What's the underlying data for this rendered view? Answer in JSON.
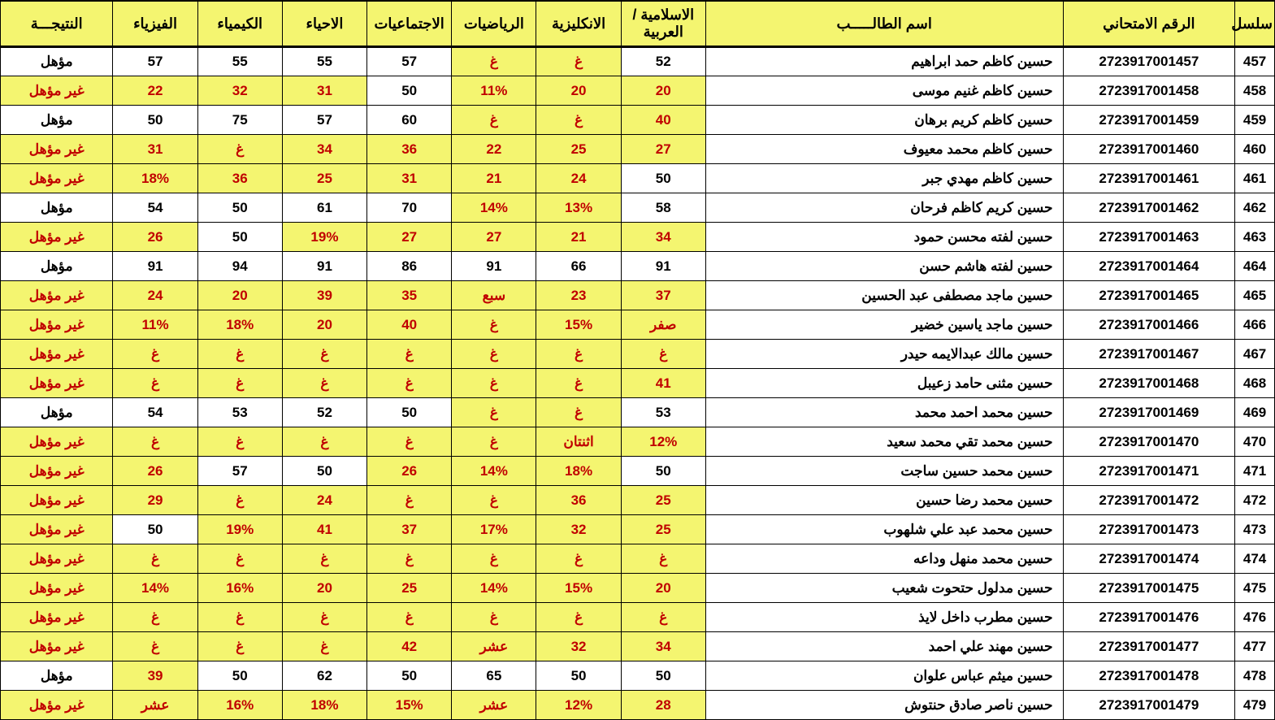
{
  "headers": {
    "seq": "سلسل",
    "exam_no": "الرقم الامتحاني",
    "name": "اسم الطالـــــب",
    "islamic_arabic": "الاسلامية / العربية",
    "english": "الانكليزية",
    "math": "الرياضيات",
    "social": "الاجتماعيات",
    "biology": "الاحياء",
    "chemistry": "الكيمياء",
    "physics": "الفيزياء",
    "result": "النتيجـــة"
  },
  "rows": [
    {
      "seq": "457",
      "exam_no": "2723917001457",
      "name": "حسين كاظم حمد ابراهيم",
      "c": [
        {
          "v": "52",
          "f": 0
        },
        {
          "v": "غ",
          "f": 1
        },
        {
          "v": "غ",
          "f": 1
        },
        {
          "v": "57",
          "f": 0
        },
        {
          "v": "55",
          "f": 0
        },
        {
          "v": "55",
          "f": 0
        },
        {
          "v": "57",
          "f": 0
        }
      ],
      "result": {
        "v": "مؤهل",
        "f": 0
      }
    },
    {
      "seq": "458",
      "exam_no": "2723917001458",
      "name": "حسين كاظم غنيم موسى",
      "c": [
        {
          "v": "20",
          "f": 1
        },
        {
          "v": "20",
          "f": 1
        },
        {
          "v": "11%",
          "f": 1
        },
        {
          "v": "50",
          "f": 0
        },
        {
          "v": "31",
          "f": 1
        },
        {
          "v": "32",
          "f": 1
        },
        {
          "v": "22",
          "f": 1
        }
      ],
      "result": {
        "v": "غير مؤهل",
        "f": 1
      }
    },
    {
      "seq": "459",
      "exam_no": "2723917001459",
      "name": "حسين كاظم كريم برهان",
      "c": [
        {
          "v": "40",
          "f": 1
        },
        {
          "v": "غ",
          "f": 1
        },
        {
          "v": "غ",
          "f": 1
        },
        {
          "v": "60",
          "f": 0
        },
        {
          "v": "57",
          "f": 0
        },
        {
          "v": "75",
          "f": 0
        },
        {
          "v": "50",
          "f": 0
        }
      ],
      "result": {
        "v": "مؤهل",
        "f": 0
      }
    },
    {
      "seq": "460",
      "exam_no": "2723917001460",
      "name": "حسين كاظم محمد معيوف",
      "c": [
        {
          "v": "27",
          "f": 1
        },
        {
          "v": "25",
          "f": 1
        },
        {
          "v": "22",
          "f": 1
        },
        {
          "v": "36",
          "f": 1
        },
        {
          "v": "34",
          "f": 1
        },
        {
          "v": "غ",
          "f": 1
        },
        {
          "v": "31",
          "f": 1
        }
      ],
      "result": {
        "v": "غير مؤهل",
        "f": 1
      }
    },
    {
      "seq": "461",
      "exam_no": "2723917001461",
      "name": "حسين كاظم مهدي جبر",
      "c": [
        {
          "v": "50",
          "f": 0
        },
        {
          "v": "24",
          "f": 1
        },
        {
          "v": "21",
          "f": 1
        },
        {
          "v": "31",
          "f": 1
        },
        {
          "v": "25",
          "f": 1
        },
        {
          "v": "36",
          "f": 1
        },
        {
          "v": "18%",
          "f": 1
        }
      ],
      "result": {
        "v": "غير مؤهل",
        "f": 1
      }
    },
    {
      "seq": "462",
      "exam_no": "2723917001462",
      "name": "حسين كريم كاظم فرحان",
      "c": [
        {
          "v": "58",
          "f": 0
        },
        {
          "v": "13%",
          "f": 1
        },
        {
          "v": "14%",
          "f": 1
        },
        {
          "v": "70",
          "f": 0
        },
        {
          "v": "61",
          "f": 0
        },
        {
          "v": "50",
          "f": 0
        },
        {
          "v": "54",
          "f": 0
        }
      ],
      "result": {
        "v": "مؤهل",
        "f": 0
      }
    },
    {
      "seq": "463",
      "exam_no": "2723917001463",
      "name": "حسين لفته محسن حمود",
      "c": [
        {
          "v": "34",
          "f": 1
        },
        {
          "v": "21",
          "f": 1
        },
        {
          "v": "27",
          "f": 1
        },
        {
          "v": "27",
          "f": 1
        },
        {
          "v": "19%",
          "f": 1
        },
        {
          "v": "50",
          "f": 0
        },
        {
          "v": "26",
          "f": 1
        }
      ],
      "result": {
        "v": "غير مؤهل",
        "f": 1
      }
    },
    {
      "seq": "464",
      "exam_no": "2723917001464",
      "name": "حسين لفته هاشم حسن",
      "c": [
        {
          "v": "91",
          "f": 0
        },
        {
          "v": "66",
          "f": 0
        },
        {
          "v": "91",
          "f": 0
        },
        {
          "v": "86",
          "f": 0
        },
        {
          "v": "91",
          "f": 0
        },
        {
          "v": "94",
          "f": 0
        },
        {
          "v": "91",
          "f": 0
        }
      ],
      "result": {
        "v": "مؤهل",
        "f": 0
      }
    },
    {
      "seq": "465",
      "exam_no": "2723917001465",
      "name": "حسين ماجد مصطفى عبد الحسين",
      "c": [
        {
          "v": "37",
          "f": 1
        },
        {
          "v": "23",
          "f": 1
        },
        {
          "v": "سبع",
          "f": 1
        },
        {
          "v": "35",
          "f": 1
        },
        {
          "v": "39",
          "f": 1
        },
        {
          "v": "20",
          "f": 1
        },
        {
          "v": "24",
          "f": 1
        }
      ],
      "result": {
        "v": "غير مؤهل",
        "f": 1
      }
    },
    {
      "seq": "466",
      "exam_no": "2723917001466",
      "name": "حسين ماجد ياسين خضير",
      "c": [
        {
          "v": "صفر",
          "f": 1
        },
        {
          "v": "15%",
          "f": 1
        },
        {
          "v": "غ",
          "f": 1
        },
        {
          "v": "40",
          "f": 1
        },
        {
          "v": "20",
          "f": 1
        },
        {
          "v": "18%",
          "f": 1
        },
        {
          "v": "11%",
          "f": 1
        }
      ],
      "result": {
        "v": "غير مؤهل",
        "f": 1
      }
    },
    {
      "seq": "467",
      "exam_no": "2723917001467",
      "name": "حسين مالك عبدالايمه حيدر",
      "c": [
        {
          "v": "غ",
          "f": 1
        },
        {
          "v": "غ",
          "f": 1
        },
        {
          "v": "غ",
          "f": 1
        },
        {
          "v": "غ",
          "f": 1
        },
        {
          "v": "غ",
          "f": 1
        },
        {
          "v": "غ",
          "f": 1
        },
        {
          "v": "غ",
          "f": 1
        }
      ],
      "result": {
        "v": "غير مؤهل",
        "f": 1
      }
    },
    {
      "seq": "468",
      "exam_no": "2723917001468",
      "name": "حسين مثنى حامد زعيبل",
      "c": [
        {
          "v": "41",
          "f": 1
        },
        {
          "v": "غ",
          "f": 1
        },
        {
          "v": "غ",
          "f": 1
        },
        {
          "v": "غ",
          "f": 1
        },
        {
          "v": "غ",
          "f": 1
        },
        {
          "v": "غ",
          "f": 1
        },
        {
          "v": "غ",
          "f": 1
        }
      ],
      "result": {
        "v": "غير مؤهل",
        "f": 1
      }
    },
    {
      "seq": "469",
      "exam_no": "2723917001469",
      "name": "حسين محمد احمد محمد",
      "c": [
        {
          "v": "53",
          "f": 0
        },
        {
          "v": "غ",
          "f": 1
        },
        {
          "v": "غ",
          "f": 1
        },
        {
          "v": "50",
          "f": 0
        },
        {
          "v": "52",
          "f": 0
        },
        {
          "v": "53",
          "f": 0
        },
        {
          "v": "54",
          "f": 0
        }
      ],
      "result": {
        "v": "مؤهل",
        "f": 0
      }
    },
    {
      "seq": "470",
      "exam_no": "2723917001470",
      "name": "حسين محمد تقي محمد سعيد",
      "c": [
        {
          "v": "12%",
          "f": 1
        },
        {
          "v": "اثنتان",
          "f": 1
        },
        {
          "v": "غ",
          "f": 1
        },
        {
          "v": "غ",
          "f": 1
        },
        {
          "v": "غ",
          "f": 1
        },
        {
          "v": "غ",
          "f": 1
        },
        {
          "v": "غ",
          "f": 1
        }
      ],
      "result": {
        "v": "غير مؤهل",
        "f": 1
      }
    },
    {
      "seq": "471",
      "exam_no": "2723917001471",
      "name": "حسين محمد حسين ساجت",
      "c": [
        {
          "v": "50",
          "f": 0
        },
        {
          "v": "18%",
          "f": 1
        },
        {
          "v": "14%",
          "f": 1
        },
        {
          "v": "26",
          "f": 1
        },
        {
          "v": "50",
          "f": 0
        },
        {
          "v": "57",
          "f": 0
        },
        {
          "v": "26",
          "f": 1
        }
      ],
      "result": {
        "v": "غير مؤهل",
        "f": 1
      }
    },
    {
      "seq": "472",
      "exam_no": "2723917001472",
      "name": "حسين محمد رضا حسين",
      "c": [
        {
          "v": "25",
          "f": 1
        },
        {
          "v": "36",
          "f": 1
        },
        {
          "v": "غ",
          "f": 1
        },
        {
          "v": "غ",
          "f": 1
        },
        {
          "v": "24",
          "f": 1
        },
        {
          "v": "غ",
          "f": 1
        },
        {
          "v": "29",
          "f": 1
        }
      ],
      "result": {
        "v": "غير مؤهل",
        "f": 1
      }
    },
    {
      "seq": "473",
      "exam_no": "2723917001473",
      "name": "حسين محمد عبد علي شلهوب",
      "c": [
        {
          "v": "25",
          "f": 1
        },
        {
          "v": "32",
          "f": 1
        },
        {
          "v": "17%",
          "f": 1
        },
        {
          "v": "37",
          "f": 1
        },
        {
          "v": "41",
          "f": 1
        },
        {
          "v": "19%",
          "f": 1
        },
        {
          "v": "50",
          "f": 0
        }
      ],
      "result": {
        "v": "غير مؤهل",
        "f": 1
      }
    },
    {
      "seq": "474",
      "exam_no": "2723917001474",
      "name": "حسين محمد منهل وداعه",
      "c": [
        {
          "v": "غ",
          "f": 1
        },
        {
          "v": "غ",
          "f": 1
        },
        {
          "v": "غ",
          "f": 1
        },
        {
          "v": "غ",
          "f": 1
        },
        {
          "v": "غ",
          "f": 1
        },
        {
          "v": "غ",
          "f": 1
        },
        {
          "v": "غ",
          "f": 1
        }
      ],
      "result": {
        "v": "غير مؤهل",
        "f": 1
      }
    },
    {
      "seq": "475",
      "exam_no": "2723917001475",
      "name": "حسين مدلول حتحوت شعيب",
      "c": [
        {
          "v": "20",
          "f": 1
        },
        {
          "v": "15%",
          "f": 1
        },
        {
          "v": "14%",
          "f": 1
        },
        {
          "v": "25",
          "f": 1
        },
        {
          "v": "20",
          "f": 1
        },
        {
          "v": "16%",
          "f": 1
        },
        {
          "v": "14%",
          "f": 1
        }
      ],
      "result": {
        "v": "غير مؤهل",
        "f": 1
      }
    },
    {
      "seq": "476",
      "exam_no": "2723917001476",
      "name": "حسين مطرب داخل لايذ",
      "c": [
        {
          "v": "غ",
          "f": 1
        },
        {
          "v": "غ",
          "f": 1
        },
        {
          "v": "غ",
          "f": 1
        },
        {
          "v": "غ",
          "f": 1
        },
        {
          "v": "غ",
          "f": 1
        },
        {
          "v": "غ",
          "f": 1
        },
        {
          "v": "غ",
          "f": 1
        }
      ],
      "result": {
        "v": "غير مؤهل",
        "f": 1
      }
    },
    {
      "seq": "477",
      "exam_no": "2723917001477",
      "name": "حسين مهند علي احمد",
      "c": [
        {
          "v": "34",
          "f": 1
        },
        {
          "v": "32",
          "f": 1
        },
        {
          "v": "عشر",
          "f": 1
        },
        {
          "v": "42",
          "f": 1
        },
        {
          "v": "غ",
          "f": 1
        },
        {
          "v": "غ",
          "f": 1
        },
        {
          "v": "غ",
          "f": 1
        }
      ],
      "result": {
        "v": "غير مؤهل",
        "f": 1
      }
    },
    {
      "seq": "478",
      "exam_no": "2723917001478",
      "name": "حسين ميثم عباس علوان",
      "c": [
        {
          "v": "50",
          "f": 0
        },
        {
          "v": "50",
          "f": 0
        },
        {
          "v": "65",
          "f": 0
        },
        {
          "v": "50",
          "f": 0
        },
        {
          "v": "62",
          "f": 0
        },
        {
          "v": "50",
          "f": 0
        },
        {
          "v": "39",
          "f": 1
        }
      ],
      "result": {
        "v": "مؤهل",
        "f": 0
      }
    },
    {
      "seq": "479",
      "exam_no": "2723917001479",
      "name": "حسين ناصر صادق حنتوش",
      "c": [
        {
          "v": "28",
          "f": 1
        },
        {
          "v": "12%",
          "f": 1
        },
        {
          "v": "عشر",
          "f": 1
        },
        {
          "v": "15%",
          "f": 1
        },
        {
          "v": "18%",
          "f": 1
        },
        {
          "v": "16%",
          "f": 1
        },
        {
          "v": "عشر",
          "f": 1
        }
      ],
      "result": {
        "v": "غير مؤهل",
        "f": 1
      }
    }
  ]
}
